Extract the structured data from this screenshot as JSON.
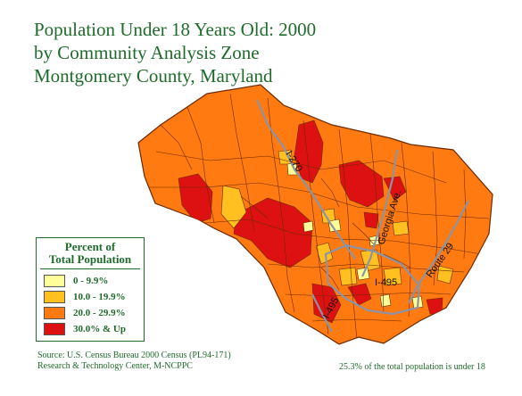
{
  "title": {
    "line1": "Population Under 18 Years Old: 2000",
    "line2": "by Community Analysis Zone",
    "line3": "Montgomery County, Maryland"
  },
  "legend": {
    "title_line1": "Percent of",
    "title_line2": "Total Population",
    "items": [
      {
        "label": "0 - 9.9%",
        "color": "#ffff99"
      },
      {
        "label": "10.0 - 19.9%",
        "color": "#ffc020"
      },
      {
        "label": "20.0 - 29.9%",
        "color": "#ff7a10"
      },
      {
        "label": "30.0% & Up",
        "color": "#dd1111"
      }
    ]
  },
  "source": {
    "line1": "Source: U.S. Census  Bureau 2000 Census (PL94-171)",
    "line2": "Research & Technology Center, M-NCPPC"
  },
  "summary": "25.3% of the total population is under 18",
  "roads": {
    "i270": "I-270",
    "georgia": "Georgia Ave.",
    "route29": "Route 29",
    "i495_a": "I-495",
    "i495_b": "I-495"
  },
  "colors": {
    "title": "#1f6b2b",
    "zone_line": "#6b2a00",
    "highway": "#8a94a6"
  }
}
